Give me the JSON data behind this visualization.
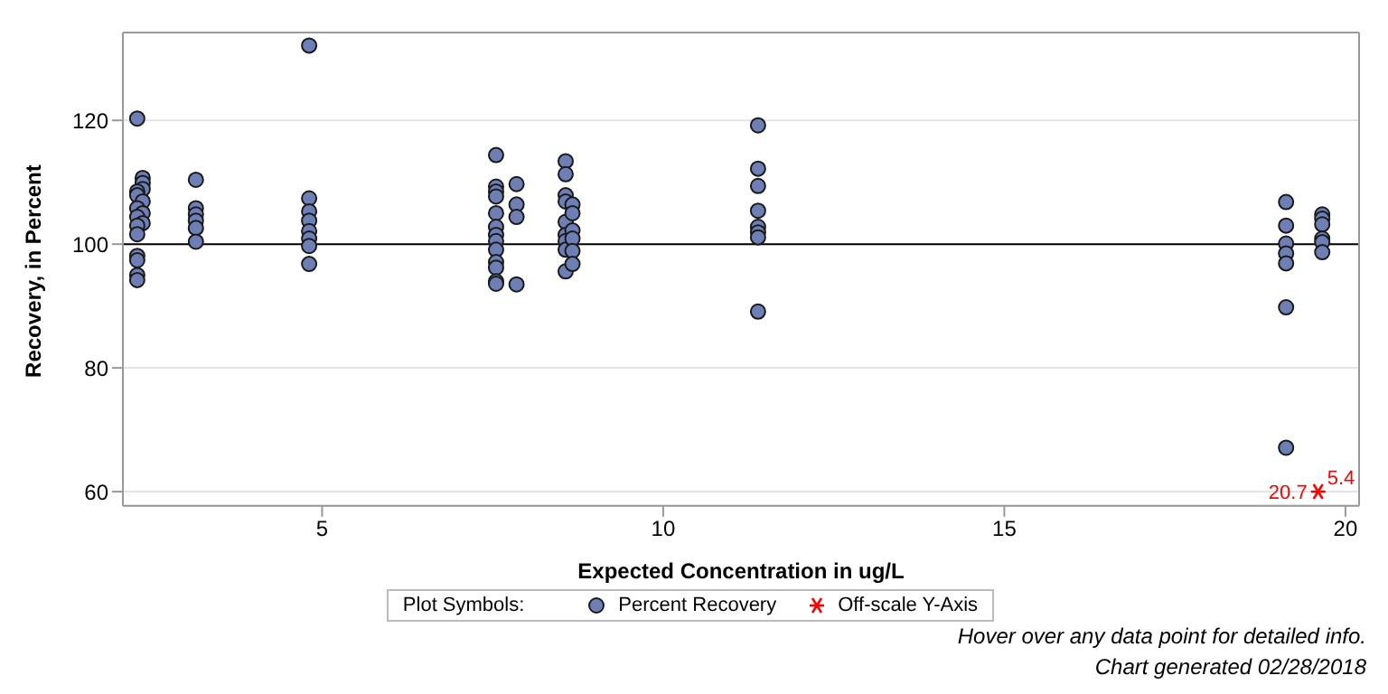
{
  "chart_data": {
    "type": "scatter",
    "xlabel": "Expected Concentration in ug/L",
    "ylabel": "Recovery, in Percent",
    "xlim": [
      2.08,
      20.2
    ],
    "xticks": [
      5,
      10,
      15,
      20
    ],
    "ylim": [
      57.7,
      134.2
    ],
    "yticks": [
      60,
      80,
      100,
      120
    ],
    "grid": "y",
    "legend": "bottom",
    "legend_title": "Plot Symbols:",
    "ref_lines": [
      {
        "axis": "y",
        "value": 100,
        "color": "#000000"
      }
    ],
    "series": [
      {
        "name": "Percent Recovery",
        "color": "#6e7fb5",
        "marker": "circle",
        "x": [
          2.29,
          2.37,
          2.37,
          2.37,
          2.29,
          2.29,
          2.37,
          2.29,
          2.37,
          2.29,
          2.37,
          2.29,
          2.29,
          2.29,
          2.29,
          2.29,
          2.29,
          3.15,
          3.15,
          3.15,
          3.15,
          3.15,
          3.15,
          4.81,
          4.81,
          4.81,
          4.81,
          4.81,
          4.81,
          4.81,
          4.81,
          7.55,
          7.55,
          7.55,
          7.55,
          7.55,
          7.55,
          7.55,
          7.55,
          7.55,
          7.55,
          7.55,
          7.55,
          7.55,
          7.85,
          7.85,
          7.85,
          7.85,
          8.57,
          8.57,
          8.57,
          8.57,
          8.57,
          8.57,
          8.57,
          8.57,
          8.57,
          8.67,
          8.67,
          8.67,
          8.67,
          8.67,
          8.67,
          11.39,
          11.39,
          11.39,
          11.39,
          11.39,
          11.39,
          11.39,
          11.39,
          19.13,
          19.13,
          19.13,
          19.13,
          19.13,
          19.13,
          19.13,
          19.66,
          19.66,
          19.66,
          19.66,
          19.66,
          19.66
        ],
        "values": [
          120.3,
          110.7,
          109.9,
          108.9,
          108.5,
          107.9,
          106.9,
          105.8,
          105,
          104.4,
          103.4,
          103,
          101.6,
          98.1,
          97.4,
          95,
          94.2,
          110.4,
          105.8,
          104.8,
          103.8,
          102.6,
          100.4,
          132.1,
          107.4,
          105.3,
          103.8,
          102.1,
          100.9,
          99.7,
          96.8,
          114.4,
          109.3,
          108.5,
          107.7,
          105,
          102.8,
          101.5,
          100.5,
          99.1,
          97.1,
          96.2,
          94,
          93.6,
          109.7,
          106.4,
          104.4,
          93.5,
          113.4,
          111.3,
          107.9,
          106.9,
          103.6,
          101.5,
          100.5,
          99.1,
          95.6,
          106.4,
          105,
          102.2,
          100.9,
          98.9,
          96.8,
          119.2,
          112.2,
          109.4,
          105.4,
          102.8,
          101.9,
          101.1,
          89.1,
          106.8,
          103,
          100.1,
          98.5,
          96.9,
          89.8,
          67.1,
          104.8,
          104.1,
          103.2,
          100.9,
          100.3,
          98.7
        ]
      },
      {
        "name": "Off-scale Y-Axis",
        "color": "#ff0000",
        "marker": "cross",
        "x": [
          19.6
        ],
        "values": [
          60
        ]
      }
    ],
    "annotations": [
      {
        "text": "20.7",
        "x": 19.6,
        "y": 60
      },
      {
        "text": "5.4",
        "x": 19.6,
        "y": 60
      },
      "Hover over any data point for detailed info.",
      "Chart generated 02/28/2018"
    ]
  }
}
